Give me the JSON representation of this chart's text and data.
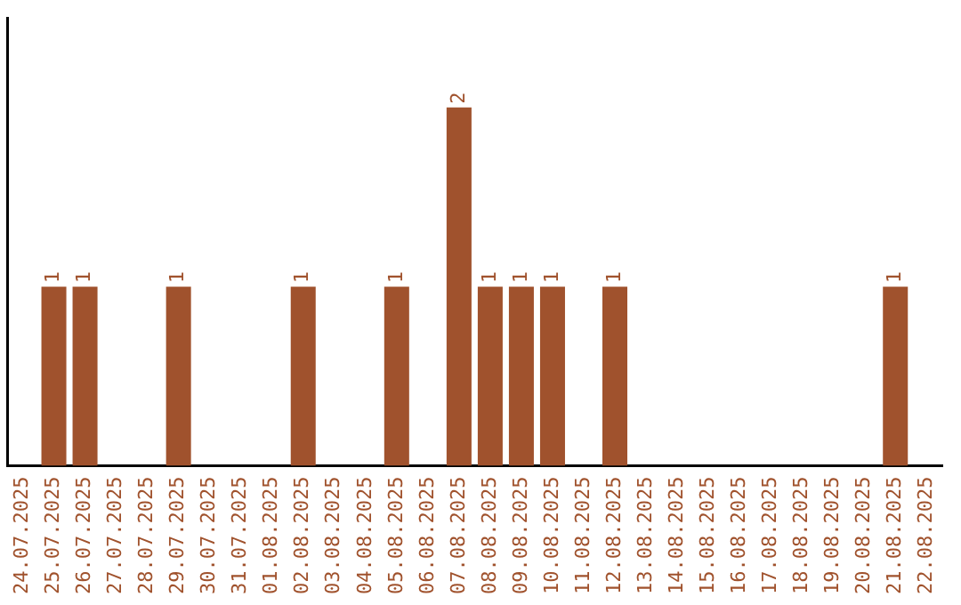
{
  "chart_data": {
    "type": "bar",
    "categories": [
      "24.07.2025",
      "25.07.2025",
      "26.07.2025",
      "27.07.2025",
      "28.07.2025",
      "29.07.2025",
      "30.07.2025",
      "31.07.2025",
      "01.08.2025",
      "02.08.2025",
      "03.08.2025",
      "04.08.2025",
      "05.08.2025",
      "06.08.2025",
      "07.08.2025",
      "08.08.2025",
      "09.08.2025",
      "10.08.2025",
      "11.08.2025",
      "12.08.2025",
      "13.08.2025",
      "14.08.2025",
      "15.08.2025",
      "16.08.2025",
      "17.08.2025",
      "18.08.2025",
      "19.08.2025",
      "20.08.2025",
      "21.08.2025",
      "22.08.2025"
    ],
    "values": [
      0,
      1,
      1,
      0,
      0,
      1,
      0,
      0,
      0,
      1,
      0,
      0,
      1,
      0,
      2,
      1,
      1,
      1,
      0,
      1,
      0,
      0,
      0,
      0,
      0,
      0,
      0,
      0,
      1,
      0
    ],
    "value_labels": [
      null,
      "1",
      "1",
      null,
      null,
      "1",
      null,
      null,
      null,
      "1",
      null,
      null,
      "1",
      null,
      "2",
      "1",
      "1",
      "1",
      null,
      "1",
      null,
      null,
      null,
      null,
      null,
      null,
      null,
      null,
      "1",
      null
    ],
    "color": "#a0522d",
    "grid": false,
    "legend": false,
    "tick_labels": "x"
  }
}
